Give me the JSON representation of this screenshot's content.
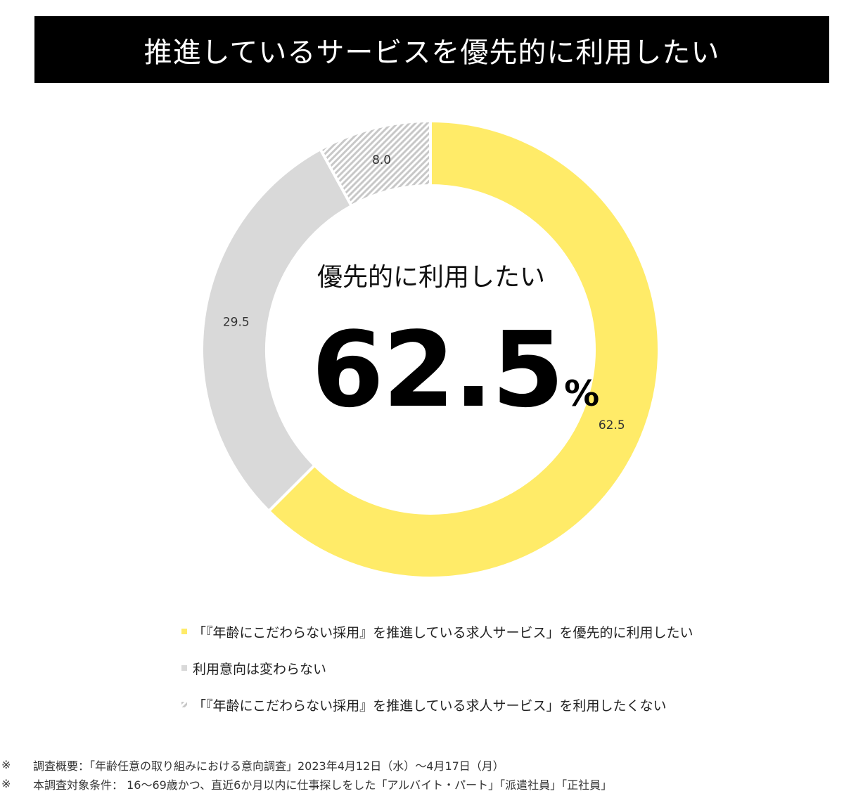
{
  "header": {
    "title": "推進しているサービスを優先的に利用したい"
  },
  "center": {
    "label": "優先的に利用したい",
    "value": "62.5",
    "unit": "%"
  },
  "chart_data": {
    "type": "pie",
    "variant": "donut",
    "start": "12 o'clock, clockwise",
    "series": [
      {
        "name": "「『年齢にこだわらない採用』を推進している求人サービス」を優先的に利用したい",
        "value": 62.5,
        "label": "62.5",
        "color": "#FFEB68",
        "pattern": "solid"
      },
      {
        "name": "利用意向は変わらない",
        "value": 29.5,
        "label": "29.5",
        "color": "#D9D9D9",
        "pattern": "solid"
      },
      {
        "name": "「『年齢にこだわらない採用』を推進している求人サービス」を利用したくない",
        "value": 8.0,
        "label": "8.0",
        "color": "#BFBFBF",
        "pattern": "diagonal-hatch"
      }
    ],
    "legend_position": "bottom"
  },
  "notes": [
    {
      "mark": "※",
      "text": "調査概要：「年齢任意の取り組みにおける意向調査」2023年4月12日（水）～4月17日（月）"
    },
    {
      "mark": "※",
      "text": "本調査対象条件： 16～69歳かつ、直近6か月以内に仕事探しをした「アルバイト・パート」「派遣社員」「正社員」"
    }
  ]
}
